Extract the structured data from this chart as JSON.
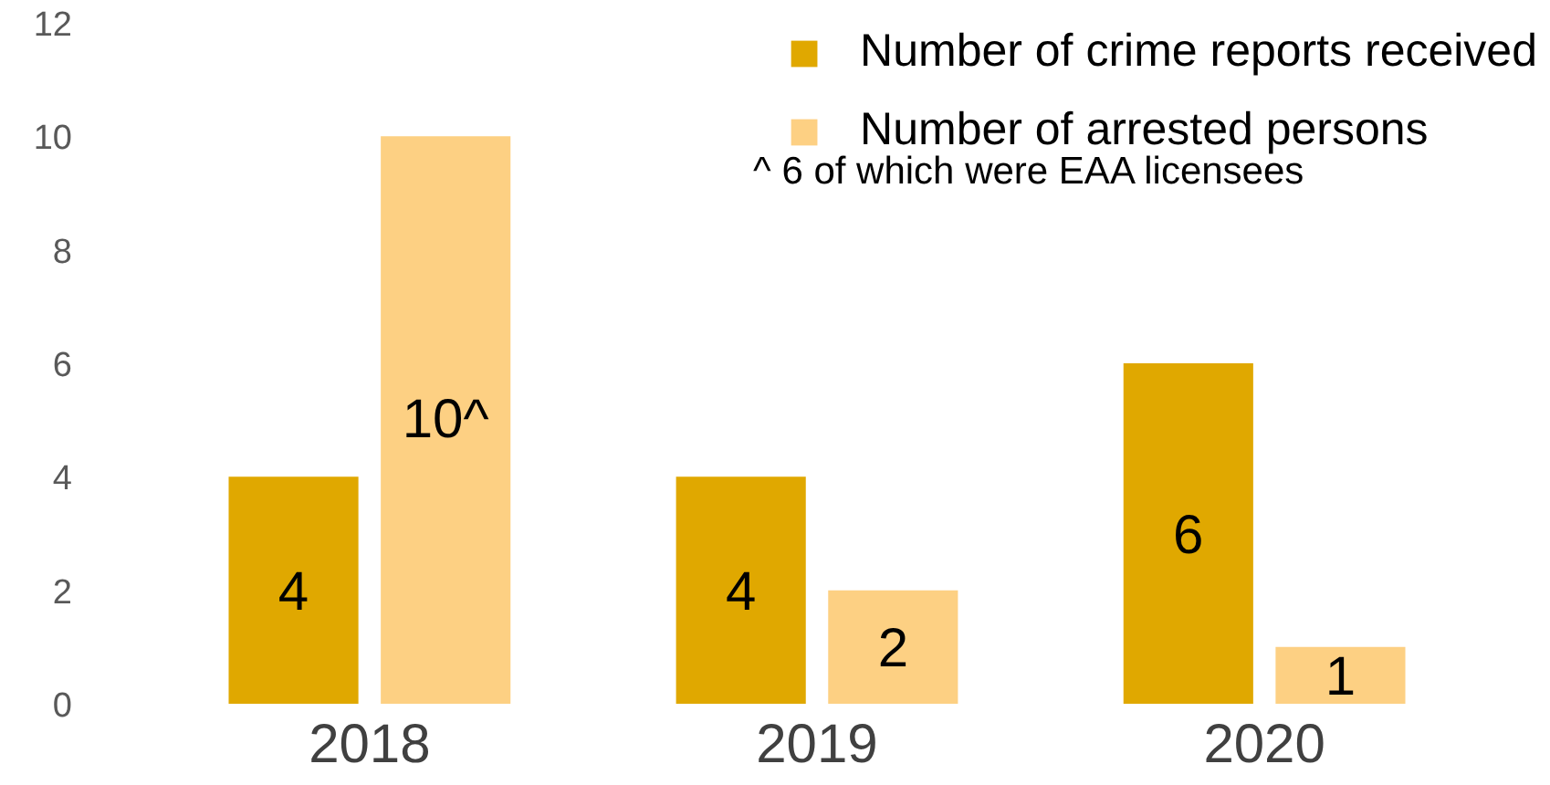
{
  "chart_data": {
    "type": "bar",
    "categories": [
      "2018",
      "2019",
      "2020"
    ],
    "series": [
      {
        "name": "Number of crime reports received",
        "color": "#e0a800",
        "values": [
          4,
          4,
          6
        ],
        "value_labels": [
          "4",
          "4",
          "6"
        ]
      },
      {
        "name": "Number of arrested persons",
        "color": "#fdd083",
        "values": [
          10,
          2,
          1
        ],
        "value_labels": [
          "10^",
          "2",
          "1"
        ]
      }
    ],
    "annotations": [
      "^ 6 of which were EAA licensees"
    ],
    "ylim": [
      0,
      12
    ],
    "yticks": [
      0,
      2,
      4,
      6,
      8,
      10,
      12
    ],
    "grid": false,
    "legend": "top right"
  }
}
